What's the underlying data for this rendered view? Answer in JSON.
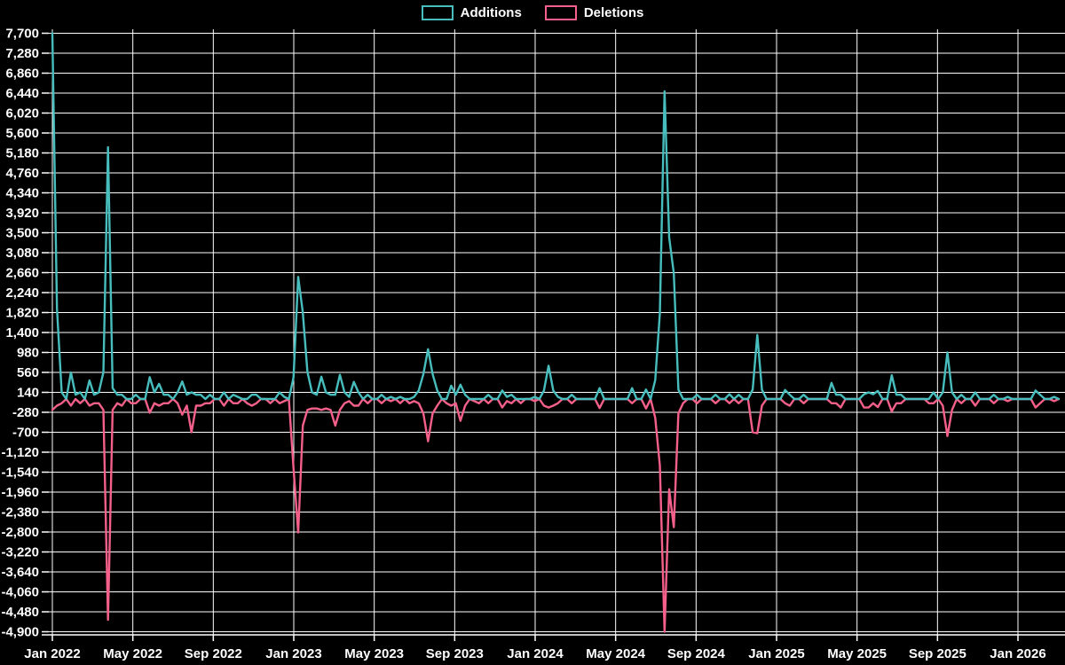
{
  "chart_data": {
    "type": "line",
    "title": "",
    "xlabel": "",
    "ylabel": "",
    "grid": true,
    "background_color": "#000000",
    "gridline_color": "#ffffff",
    "text_color": "#ffffff",
    "legend_position": "top-center",
    "legend": [
      {
        "name": "Additions",
        "color": "#48BDBD"
      },
      {
        "name": "Deletions",
        "color": "#F4608A"
      }
    ],
    "x_axis": {
      "unit": "week",
      "start_label": "Jan 2022",
      "tick_labels": [
        "Jan 2022",
        "May 2022",
        "Sep 2022",
        "Jan 2023",
        "May 2023",
        "Sep 2023",
        "Jan 2024",
        "May 2024",
        "Sep 2024",
        "Jan 2025",
        "May 2025",
        "Sep 2025",
        "Jan 2026"
      ]
    },
    "y_axis": {
      "min": -4900,
      "max": 7700,
      "step": 420,
      "tick_labels": [
        "7,700",
        "7,280",
        "6,860",
        "6,440",
        "6,020",
        "5,600",
        "5,180",
        "4,760",
        "4,340",
        "3,920",
        "3,500",
        "3,080",
        "2,660",
        "2,240",
        "1,820",
        "1,400",
        "980",
        "560",
        "140",
        "-280",
        "-700",
        "-1,120",
        "-1,540",
        "-1,960",
        "-2,380",
        "-2,800",
        "-3,220",
        "-3,640",
        "-4,060",
        "-4,480",
        "-4,900"
      ]
    },
    "series": [
      {
        "name": "Additions",
        "color": "#48BDBD",
        "values": [
          7700,
          1900,
          140,
          0,
          560,
          90,
          140,
          0,
          390,
          90,
          140,
          560,
          5300,
          230,
          90,
          90,
          0,
          0,
          90,
          0,
          0,
          460,
          140,
          320,
          90,
          90,
          0,
          140,
          370,
          90,
          140,
          90,
          90,
          0,
          90,
          0,
          0,
          140,
          0,
          90,
          45,
          0,
          0,
          90,
          90,
          0,
          0,
          0,
          0,
          140,
          45,
          0,
          450,
          2570,
          1820,
          570,
          140,
          90,
          470,
          140,
          90,
          90,
          510,
          140,
          45,
          360,
          140,
          0,
          90,
          0,
          0,
          90,
          0,
          45,
          0,
          45,
          0,
          0,
          45,
          180,
          520,
          1050,
          520,
          180,
          0,
          0,
          280,
          90,
          300,
          90,
          0,
          0,
          0,
          0,
          90,
          0,
          0,
          180,
          45,
          90,
          0,
          0,
          0,
          0,
          45,
          0,
          180,
          700,
          180,
          45,
          0,
          0,
          90,
          0,
          0,
          0,
          0,
          0,
          230,
          0,
          0,
          0,
          0,
          0,
          0,
          230,
          0,
          0,
          200,
          0,
          400,
          1800,
          6480,
          3400,
          2650,
          200,
          0,
          0,
          0,
          90,
          0,
          0,
          0,
          90,
          0,
          0,
          100,
          0,
          90,
          0,
          0,
          200,
          1350,
          200,
          0,
          0,
          0,
          0,
          190,
          90,
          0,
          0,
          90,
          0,
          0,
          0,
          0,
          0,
          340,
          90,
          90,
          0,
          0,
          0,
          0,
          100,
          140,
          100,
          170,
          0,
          0,
          500,
          90,
          90,
          0,
          0,
          0,
          0,
          0,
          0,
          140,
          0,
          140,
          980,
          140,
          0,
          90,
          0,
          0,
          140,
          0,
          0,
          0,
          90,
          0,
          0,
          45,
          0,
          0,
          0,
          0,
          0,
          180,
          90,
          0,
          0,
          45,
          0
        ]
      },
      {
        "name": "Deletions",
        "color": "#F4608A",
        "values": [
          -230,
          -140,
          -90,
          0,
          -140,
          0,
          -90,
          0,
          -140,
          -90,
          -90,
          -230,
          -4650,
          -230,
          -90,
          -140,
          0,
          -90,
          -90,
          0,
          0,
          -290,
          -90,
          -140,
          -90,
          -90,
          0,
          -90,
          -330,
          -140,
          -700,
          -140,
          -140,
          -90,
          -90,
          0,
          0,
          -140,
          0,
          -90,
          -90,
          0,
          -90,
          -140,
          -90,
          0,
          0,
          -90,
          0,
          -90,
          -45,
          0,
          -1450,
          -2810,
          -560,
          -230,
          -200,
          -200,
          -230,
          -200,
          -230,
          -560,
          -230,
          -90,
          -45,
          -140,
          -140,
          0,
          -90,
          0,
          0,
          -90,
          0,
          -45,
          0,
          -90,
          0,
          -90,
          -45,
          -90,
          -300,
          -890,
          -300,
          -140,
          0,
          -90,
          -140,
          -90,
          -460,
          -140,
          0,
          -45,
          -90,
          0,
          -90,
          0,
          0,
          -180,
          -45,
          -90,
          0,
          -90,
          0,
          0,
          -45,
          0,
          -140,
          -180,
          -140,
          -90,
          0,
          0,
          -90,
          0,
          0,
          0,
          0,
          0,
          -190,
          0,
          0,
          0,
          0,
          0,
          0,
          -90,
          0,
          0,
          -200,
          0,
          -400,
          -1400,
          -4900,
          -1900,
          -2700,
          -300,
          -90,
          0,
          0,
          -90,
          0,
          0,
          0,
          -90,
          0,
          0,
          -90,
          0,
          -90,
          0,
          0,
          -700,
          -720,
          -140,
          0,
          0,
          0,
          0,
          -90,
          -140,
          0,
          0,
          -90,
          0,
          0,
          0,
          0,
          0,
          -90,
          -90,
          -180,
          0,
          0,
          0,
          0,
          -180,
          -180,
          -90,
          -170,
          0,
          0,
          -260,
          -90,
          -90,
          0,
          0,
          0,
          0,
          0,
          -90,
          -90,
          0,
          -140,
          -780,
          -230,
          0,
          -90,
          0,
          0,
          -140,
          0,
          0,
          0,
          -90,
          0,
          0,
          -45,
          0,
          0,
          0,
          0,
          0,
          -180,
          -90,
          0,
          0,
          -45,
          0
        ]
      }
    ]
  }
}
